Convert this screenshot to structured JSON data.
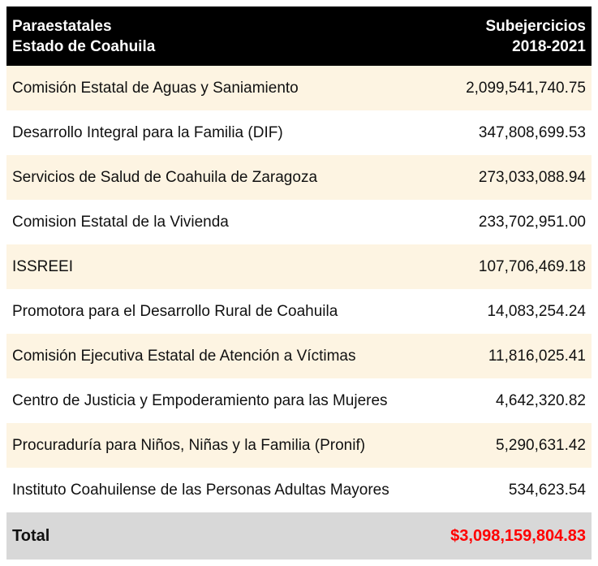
{
  "header": {
    "left_line1": "Paraestatales",
    "left_line2": "Estado de Coahuila",
    "right_line1": "Subejercicios",
    "right_line2": "2018-2021"
  },
  "rows": [
    {
      "name": "Comisión Estatal de Aguas y Saniamiento",
      "value": "2,099,541,740.75"
    },
    {
      "name": "Desarrollo Integral para la Familia (DIF)",
      "value": "347,808,699.53"
    },
    {
      "name": "Servicios de Salud de Coahuila de Zaragoza",
      "value": "273,033,088.94"
    },
    {
      "name": "Comision Estatal de la Vivienda",
      "value": "233,702,951.00"
    },
    {
      "name": "ISSREEI",
      "value": "107,706,469.18"
    },
    {
      "name": "Promotora para el Desarrollo Rural de Coahuila",
      "value": "14,083,254.24"
    },
    {
      "name": "Comisión Ejecutiva Estatal de Atención a Víctimas",
      "value": "11,816,025.41"
    },
    {
      "name": "Centro de Justicia y Empoderamiento para las Mujeres",
      "value": "4,642,320.82"
    },
    {
      "name": "Procuraduría para Niños, Niñas y la Familia (Pronif)",
      "value": "5,290,631.42"
    },
    {
      "name": "Instituto Coahuilense de las Personas Adultas Mayores",
      "value": "534,623.54"
    }
  ],
  "total": {
    "label": "Total",
    "value": "$3,098,159,804.83"
  },
  "colors": {
    "header_bg": "#000000",
    "header_text": "#ffffff",
    "alt_row_bg": "#fdf4e2",
    "total_bg": "#d8d8d8",
    "total_value": "#ff0000"
  }
}
